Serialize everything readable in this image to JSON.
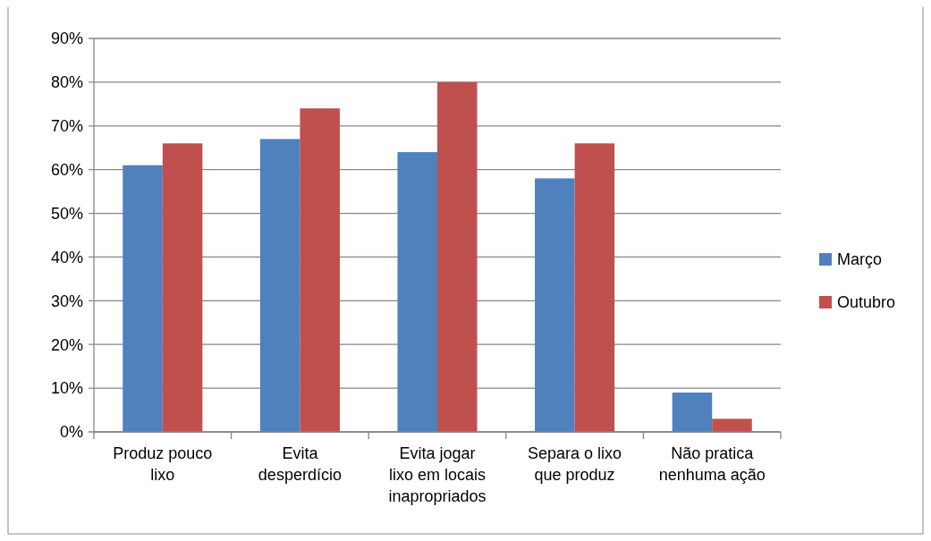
{
  "chart_data": {
    "type": "bar",
    "categories": [
      "Produz pouco lixo",
      "Evita desperdício",
      "Evita jogar lixo em locais inapropriados",
      "Separa o lixo que produz",
      "Não pratica nenhuma ação"
    ],
    "series": [
      {
        "name": "Março",
        "color": "#4f81bd",
        "values": [
          61,
          67,
          64,
          58,
          9
        ]
      },
      {
        "name": "Outubro",
        "color": "#c0504d",
        "values": [
          66,
          74,
          80,
          66,
          3
        ]
      }
    ],
    "ylim": [
      0,
      90
    ],
    "yticks": [
      {
        "value": 0,
        "label": "0%"
      },
      {
        "value": 10,
        "label": "10%"
      },
      {
        "value": 20,
        "label": "20%"
      },
      {
        "value": 30,
        "label": "30%"
      },
      {
        "value": 40,
        "label": "40%"
      },
      {
        "value": 50,
        "label": "50%"
      },
      {
        "value": 60,
        "label": "60%"
      },
      {
        "value": 70,
        "label": "70%"
      },
      {
        "value": 80,
        "label": "80%"
      },
      {
        "value": 90,
        "label": "90%"
      }
    ],
    "grid": "y",
    "legend": "right"
  }
}
